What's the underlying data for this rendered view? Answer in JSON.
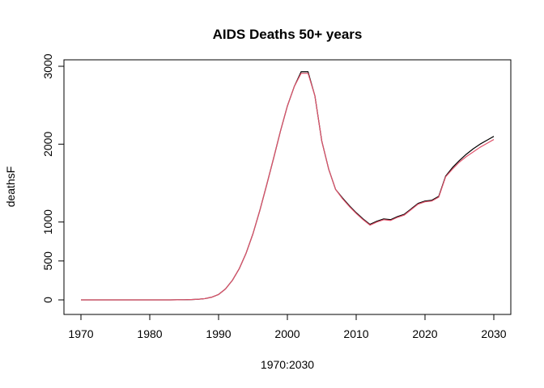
{
  "chart_data": {
    "type": "line",
    "title": "AIDS Deaths 50+ years",
    "xlabel": "1970:2030",
    "ylabel": "deathsF",
    "xlim": [
      1970,
      2030
    ],
    "ylim": [
      0,
      3000
    ],
    "x_ticks": [
      "1970",
      "1980",
      "1990",
      "2000",
      "2010",
      "2020",
      "2030"
    ],
    "y_ticks": [
      "0",
      "500",
      "1000",
      "2000",
      "3000"
    ],
    "grid": false,
    "legend": "none",
    "x": [
      1970,
      1971,
      1972,
      1973,
      1974,
      1975,
      1976,
      1977,
      1978,
      1979,
      1980,
      1981,
      1982,
      1983,
      1984,
      1985,
      1986,
      1987,
      1988,
      1989,
      1990,
      1991,
      1992,
      1993,
      1994,
      1995,
      1996,
      1997,
      1998,
      1999,
      2000,
      2001,
      2002,
      2003,
      2004,
      2005,
      2006,
      2007,
      2008,
      2009,
      2010,
      2011,
      2012,
      2013,
      2014,
      2015,
      2016,
      2017,
      2018,
      2019,
      2020,
      2021,
      2022,
      2023,
      2024,
      2025,
      2026,
      2027,
      2028,
      2029,
      2030
    ],
    "series": [
      {
        "color": "#000000",
        "values": [
          0,
          0,
          0,
          0,
          0,
          0,
          0,
          0,
          0,
          0,
          0,
          0,
          0,
          0,
          1,
          2,
          4,
          8,
          16,
          35,
          70,
          140,
          250,
          400,
          600,
          850,
          1150,
          1480,
          1820,
          2170,
          2490,
          2740,
          2930,
          2930,
          2620,
          2040,
          1680,
          1420,
          1310,
          1210,
          1120,
          1040,
          970,
          1010,
          1040,
          1030,
          1070,
          1100,
          1170,
          1240,
          1270,
          1280,
          1330,
          1590,
          1700,
          1790,
          1870,
          1940,
          2000,
          2050,
          2100
        ]
      },
      {
        "color": "#DF536B",
        "values": [
          0,
          0,
          0,
          0,
          0,
          0,
          0,
          0,
          0,
          0,
          0,
          0,
          0,
          0,
          1,
          2,
          4,
          8,
          16,
          35,
          70,
          140,
          250,
          400,
          600,
          850,
          1150,
          1480,
          1820,
          2170,
          2490,
          2740,
          2910,
          2910,
          2620,
          2040,
          1680,
          1420,
          1300,
          1200,
          1110,
          1030,
          960,
          1000,
          1030,
          1020,
          1060,
          1090,
          1160,
          1230,
          1260,
          1270,
          1320,
          1580,
          1680,
          1770,
          1840,
          1900,
          1960,
          2010,
          2060
        ]
      }
    ]
  }
}
